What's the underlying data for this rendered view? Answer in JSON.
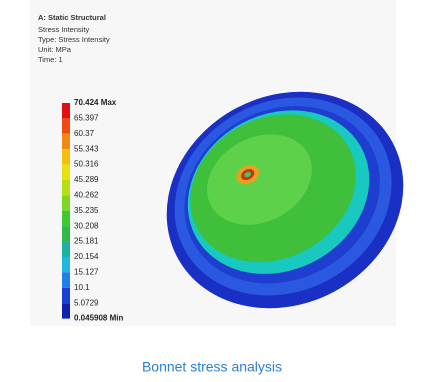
{
  "header": {
    "title": "A: Static Structural",
    "lines": [
      "Stress Intensity",
      "Type: Stress Intensity",
      "Unit: MPa",
      "Time: 1"
    ]
  },
  "legend": {
    "labels": [
      "70.424 Max",
      "65.397",
      "60.37",
      "55.343",
      "50.316",
      "45.289",
      "40.262",
      "35.235",
      "30.208",
      "25.181",
      "20.154",
      "15.127",
      "10.1",
      "5.0729",
      "0.045908 Min"
    ]
  },
  "caption": "Bonnet stress analysis"
}
